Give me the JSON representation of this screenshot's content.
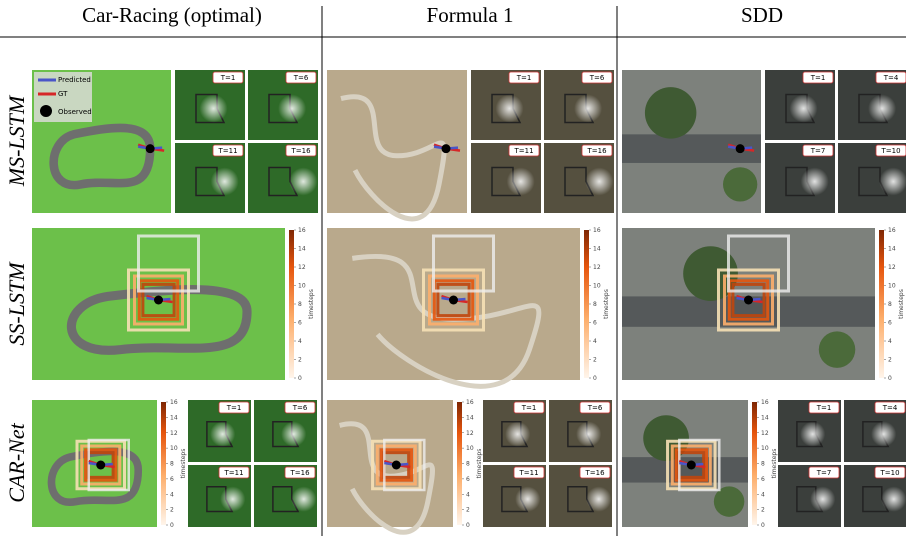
{
  "columns": [
    "Car-Racing (optimal)",
    "Formula 1",
    "SDD"
  ],
  "rows": [
    "MS-LSTM",
    "SS-LSTM",
    "CAR-Net"
  ],
  "legend": [
    "Predicted",
    "GT",
    "Observed"
  ],
  "colorbar": {
    "label": "timesteps",
    "ticks": [
      0,
      2,
      4,
      6,
      8,
      10,
      12,
      14,
      16
    ]
  },
  "tile_labels": [
    [
      "T=1",
      "T=6",
      "T=11",
      "T=16"
    ],
    [
      "T=1",
      "T=6",
      "T=11",
      "T=16"
    ],
    [
      "T=1",
      "T=4",
      "T=7",
      "T=10"
    ]
  ]
}
